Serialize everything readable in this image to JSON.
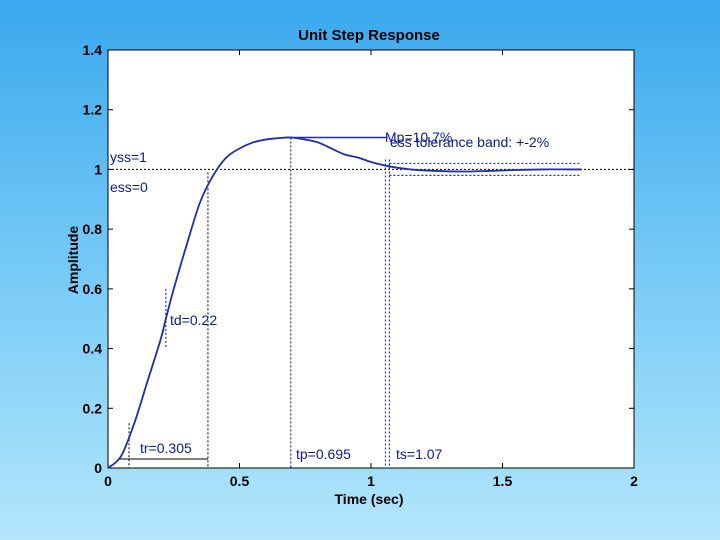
{
  "chart_data": {
    "type": "line",
    "title": "Unit Step Response",
    "xlabel": "Time (sec)",
    "ylabel": "Amplitude",
    "xlim": [
      0,
      2
    ],
    "ylim": [
      0,
      1.4
    ],
    "x_ticks": [
      0,
      0.5,
      1,
      1.5,
      2
    ],
    "x_tick_labels": [
      "0",
      "0.5",
      "1",
      "1.5",
      "2"
    ],
    "y_ticks": [
      0,
      0.2,
      0.4,
      0.6,
      0.8,
      1,
      1.2,
      1.4
    ],
    "y_tick_labels": [
      "0",
      "0.2",
      "0.4",
      "0.6",
      "0.8",
      "1",
      "1.2",
      "1.4"
    ],
    "series": [
      {
        "name": "step response",
        "color": "#1c2fae",
        "x": [
          0,
          0.05,
          0.1,
          0.15,
          0.2,
          0.22,
          0.25,
          0.3,
          0.35,
          0.4,
          0.45,
          0.5,
          0.55,
          0.6,
          0.65,
          0.695,
          0.75,
          0.8,
          0.85,
          0.9,
          0.95,
          1.0,
          1.07,
          1.15,
          1.25,
          1.35,
          1.45,
          1.55,
          1.65,
          1.75,
          1.8
        ],
        "values": [
          0,
          0.04,
          0.15,
          0.29,
          0.43,
          0.5,
          0.6,
          0.75,
          0.89,
          0.98,
          1.04,
          1.07,
          1.09,
          1.1,
          1.105,
          1.107,
          1.1,
          1.09,
          1.07,
          1.05,
          1.04,
          1.025,
          1.01,
          1.0,
          0.995,
          0.993,
          0.995,
          0.998,
          1.0,
          1.0,
          1.0
        ]
      }
    ],
    "reference_lines": {
      "steady_state": 1,
      "tolerance_upper": 1.02,
      "tolerance_lower": 0.98,
      "overshoot_peak": 1.107,
      "td_marker_y": [
        0.4,
        0.6
      ],
      "tr_marker_y": [
        0,
        0.15
      ]
    },
    "markers": [
      {
        "key": "td",
        "x": 0.22,
        "label": "td=0.22"
      },
      {
        "key": "tr",
        "x": 0.305,
        "label": "tr=0.305"
      },
      {
        "key": "tp",
        "x": 0.695,
        "label": "tp=0.695"
      },
      {
        "key": "ts",
        "x": 1.07,
        "label": "ts=1.07"
      }
    ],
    "annotations": {
      "yss": "yss=1",
      "ess": "ess=0",
      "mp": "Mp=10.7%",
      "tolerance": "ess tolerance band: +-2%"
    }
  }
}
